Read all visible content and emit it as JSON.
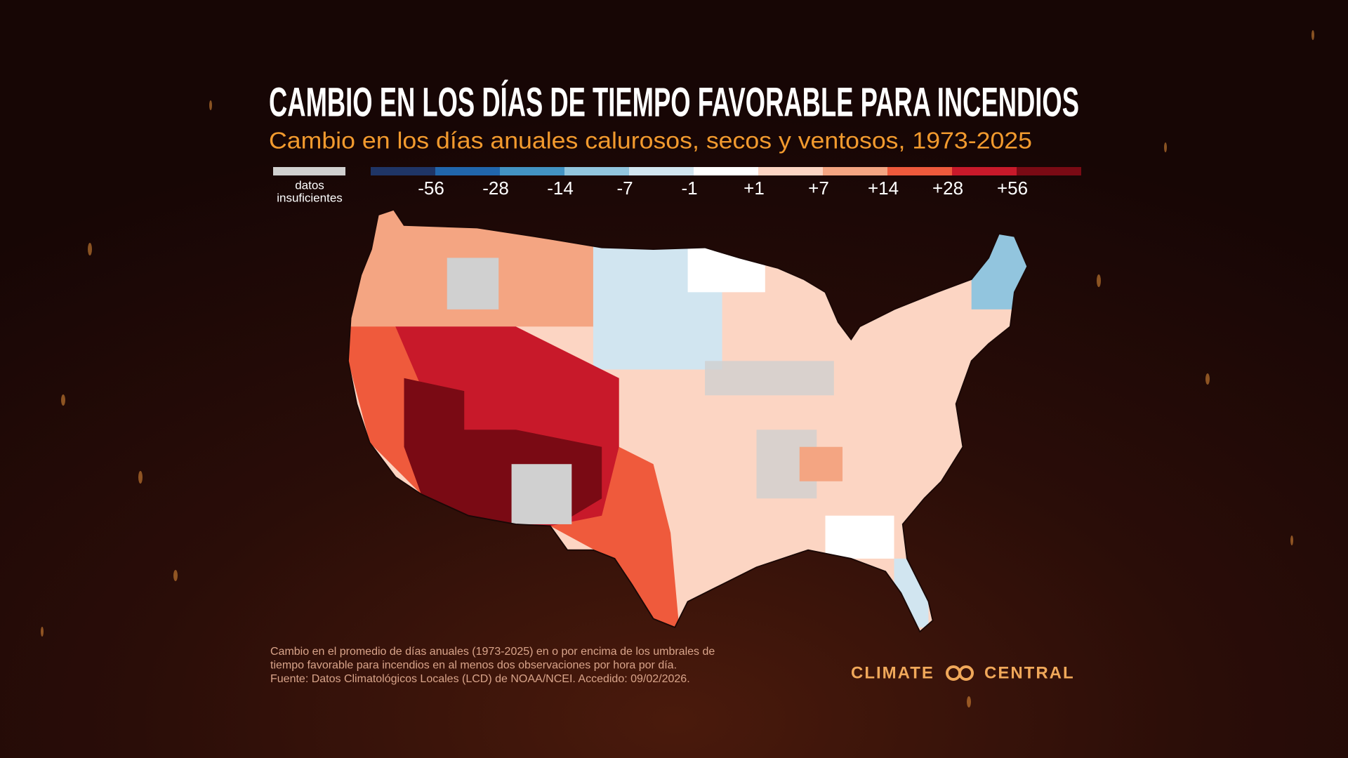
{
  "header": {
    "title": "CAMBIO EN LOS DÍAS DE TIEMPO FAVORABLE PARA INCENDIOS",
    "subtitle": "Cambio en los días anuales calurosos, secos y ventosos, 1973-2025"
  },
  "legend": {
    "no_data": {
      "color": "#d0d0d0",
      "lines": [
        "datos",
        "insuficientes"
      ]
    },
    "colors": [
      "#1f3566",
      "#2166ac",
      "#4393c3",
      "#92c5de",
      "#d1e5f0",
      "#ffffff",
      "#fcd5c3",
      "#f4a582",
      "#ef5a3c",
      "#c8192a",
      "#7a0a14"
    ],
    "labels": [
      "-56",
      "-28",
      "-14",
      "-7",
      "-1",
      "+1",
      "+7",
      "+14",
      "+28",
      "+56"
    ]
  },
  "footnote": [
    "Cambio en el promedio de días anuales (1973-2025) en o por encima de los umbrales de",
    "tiempo favorable para incendios en al menos dos observaciones por hora por día.",
    "Fuente: Datos Climatológicos Locales (LCD) de NOAA/NCEI. Accedido: 09/02/2026."
  ],
  "brand": {
    "left": "CLIMATE",
    "right": "CENTRAL"
  }
}
